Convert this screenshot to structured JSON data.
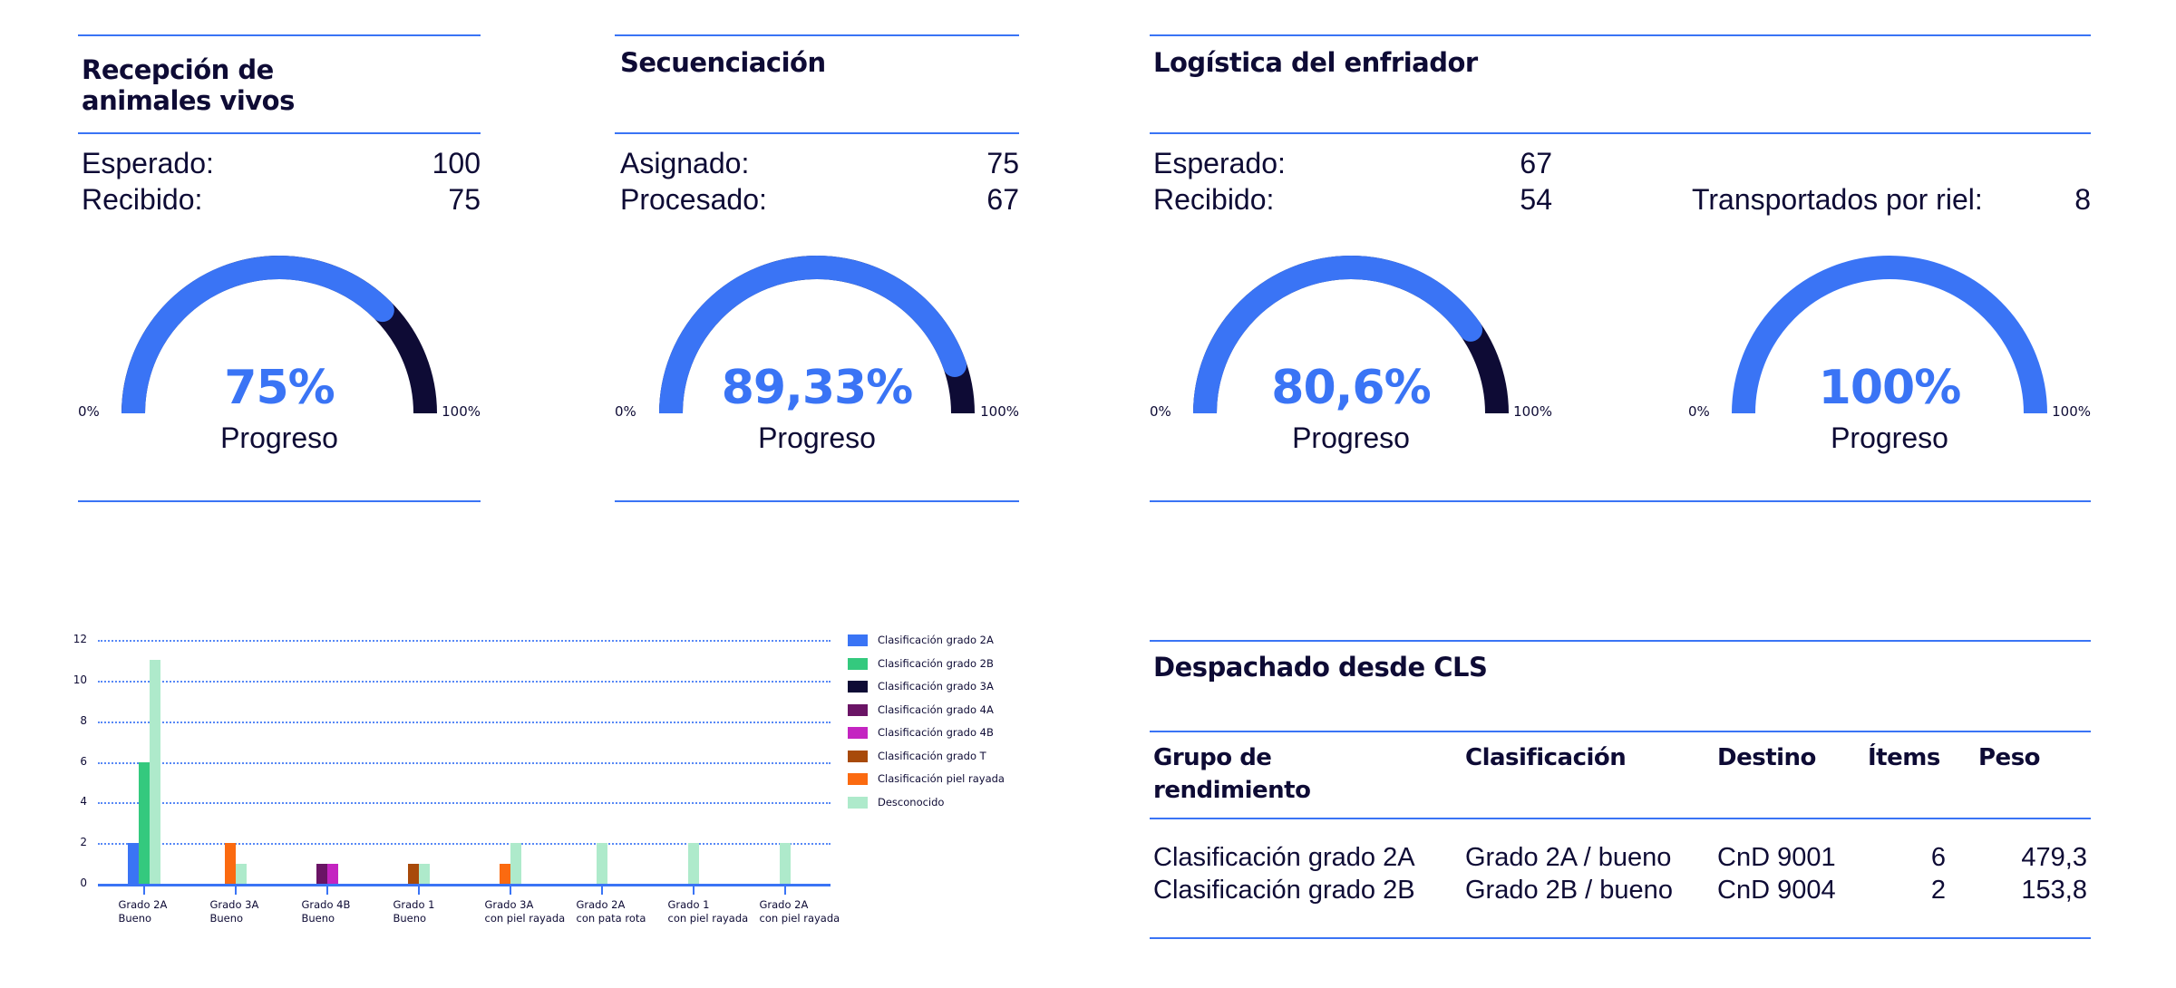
{
  "colors": {
    "accent": "#3a74f5",
    "dark": "#0e0b35"
  },
  "cards": [
    {
      "title_line1": "Recepción de",
      "title_line2": "animales vivos",
      "rows": [
        {
          "label": "Esperado:",
          "value": "100"
        },
        {
          "label": "Recibido:",
          "value": "75"
        }
      ],
      "gauge": {
        "percent": 75,
        "value_text": "75%",
        "label": "Progreso",
        "min": "0%",
        "max": "100%"
      }
    },
    {
      "title_line1": "Secuenciación",
      "title_line2": "",
      "rows": [
        {
          "label": "Asignado:",
          "value": "75"
        },
        {
          "label": "Procesado:",
          "value": "67"
        }
      ],
      "gauge": {
        "percent": 89.33,
        "value_text": "89,33%",
        "label": "Progreso",
        "min": "0%",
        "max": "100%"
      }
    },
    {
      "title_line1": "Logística del enfriador",
      "title_line2": "",
      "rows": [
        {
          "label": "Esperado:",
          "value": "67"
        },
        {
          "label": "Recibido:",
          "value": "54"
        }
      ],
      "extra_row": {
        "label": "Transportados por riel:",
        "value": "8"
      },
      "gauge": {
        "percent": 80.6,
        "value_text": "80,6%",
        "label": "Progreso",
        "min": "0%",
        "max": "100%"
      },
      "gauge2": {
        "percent": 100,
        "value_text": "100%",
        "label": "Progreso",
        "min": "0%",
        "max": "100%"
      }
    }
  ],
  "chart_data": {
    "type": "bar",
    "title": "",
    "xlabel": "",
    "ylabel": "",
    "ylim": [
      0,
      12
    ],
    "yticks": [
      "0",
      "2",
      "4",
      "6",
      "8",
      "10",
      "12"
    ],
    "grid": true,
    "legend_position": "right",
    "categories": [
      "Grado 2A\nBueno",
      "Grado 3A\nBueno",
      "Grado 4B\nBueno",
      "Grado 1\nBueno",
      "Grado 3A\ncon piel rayada",
      "Grado 2A\ncon pata rota",
      "Grado 1\ncon piel rayada",
      "Grado 2A\ncon piel rayada"
    ],
    "series": [
      {
        "name": "Clasificación grado 2A",
        "color": "#3a74f5",
        "values": [
          2,
          0,
          0,
          0,
          0,
          0,
          0,
          0
        ]
      },
      {
        "name": "Clasificación grado 2B",
        "color": "#34c97e",
        "values": [
          6,
          0,
          0,
          0,
          0,
          0,
          0,
          0
        ]
      },
      {
        "name": "Clasificación grado 3A",
        "color": "#0e0b35",
        "values": [
          0,
          0,
          0,
          0,
          0,
          0,
          0,
          0
        ]
      },
      {
        "name": "Clasificación grado 4A",
        "color": "#6a1465",
        "values": [
          0,
          0,
          1,
          0,
          0,
          0,
          0,
          0
        ]
      },
      {
        "name": "Clasificación grado 4B",
        "color": "#c424c1",
        "values": [
          0,
          0,
          1,
          0,
          0,
          0,
          0,
          0
        ]
      },
      {
        "name": "Clasificación grado T",
        "color": "#a84a0a",
        "values": [
          0,
          0,
          0,
          1,
          0,
          0,
          0,
          0
        ]
      },
      {
        "name": "Clasificación piel rayada",
        "color": "#fb6a10",
        "values": [
          0,
          2,
          0,
          0,
          1,
          0,
          0,
          0
        ]
      },
      {
        "name": "Desconocido",
        "color": "#aeeacb",
        "values": [
          11,
          1,
          0,
          1,
          2,
          2,
          2,
          2
        ]
      }
    ]
  },
  "table": {
    "title": "Despachado desde CLS",
    "headers": [
      "Grupo de\nrendimiento",
      "Clasificación",
      "Destino",
      "Ítems",
      "Peso"
    ],
    "rows": [
      [
        "Clasificación grado 2A",
        "Grado 2A / bueno",
        "CnD 9001",
        "6",
        "479,3"
      ],
      [
        "Clasificación grado 2B",
        "Grado 2B / bueno",
        "CnD 9004",
        "2",
        "153,8"
      ]
    ]
  }
}
